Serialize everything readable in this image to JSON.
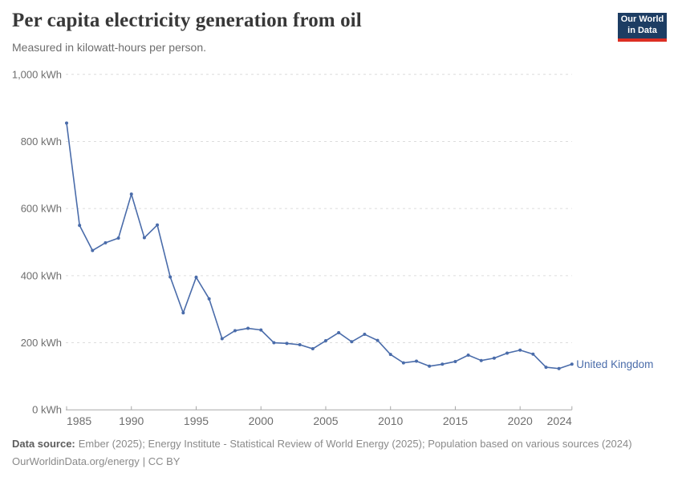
{
  "header": {
    "title": "Per capita electricity generation from oil",
    "subtitle": "Measured in kilowatt-hours per person.",
    "logo": {
      "line1": "Our World",
      "line2": "in Data"
    }
  },
  "chart_data": {
    "type": "line",
    "title": "Per capita electricity generation from oil",
    "ylabel": "kilowatt-hours per person",
    "x": [
      1985,
      1986,
      1987,
      1988,
      1989,
      1990,
      1991,
      1992,
      1993,
      1994,
      1995,
      1996,
      1997,
      1998,
      1999,
      2000,
      2001,
      2002,
      2003,
      2004,
      2005,
      2006,
      2007,
      2008,
      2009,
      2010,
      2011,
      2012,
      2013,
      2014,
      2015,
      2016,
      2017,
      2018,
      2019,
      2020,
      2021,
      2022,
      2023,
      2024
    ],
    "series": [
      {
        "name": "United Kingdom",
        "color": "#4a6caa",
        "values": [
          855,
          550,
          475,
          498,
          512,
          643,
          513,
          551,
          396,
          289,
          395,
          331,
          212,
          236,
          243,
          238,
          200,
          198,
          194,
          182,
          206,
          230,
          203,
          225,
          207,
          165,
          140,
          145,
          130,
          136,
          144,
          163,
          147,
          154,
          169,
          178,
          166,
          127,
          123,
          136
        ]
      }
    ],
    "xlim": [
      1985,
      2024
    ],
    "ylim": [
      0,
      1000
    ],
    "xticks": [
      1985,
      1990,
      1995,
      2000,
      2005,
      2010,
      2015,
      2020,
      2024
    ],
    "yticks": [
      {
        "value": 0,
        "label": "0 kWh"
      },
      {
        "value": 200,
        "label": "200 kWh"
      },
      {
        "value": 400,
        "label": "400 kWh"
      },
      {
        "value": 600,
        "label": "600 kWh"
      },
      {
        "value": 800,
        "label": "800 kWh"
      },
      {
        "value": 1000,
        "label": "1,000 kWh"
      }
    ],
    "grid": "horizontal-dashed",
    "legend_position": "end-of-line-label"
  },
  "footer": {
    "source_label": "Data source:",
    "source_text": "Ember (2025); Energy Institute - Statistical Review of World Energy (2025); Population based on various sources (2024)",
    "license_url": "OurWorldinData.org/energy",
    "license_suffix": "| CC BY"
  },
  "colors": {
    "line": "#4a6caa",
    "logo_bg": "#1d3d63",
    "logo_bar": "#dc2e23",
    "grid": "#dcdcdc",
    "axis": "#a8a8a8",
    "tick_label": "#6e6e6e",
    "title": "#383838",
    "subtitle": "#6e6e6e"
  }
}
